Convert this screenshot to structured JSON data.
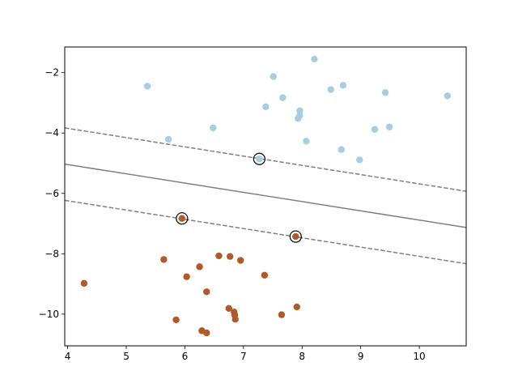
{
  "chart_data": {
    "type": "scatter",
    "title": "",
    "xlabel": "",
    "ylabel": "",
    "xlim": [
      3.95,
      10.8
    ],
    "ylim": [
      -11.05,
      -1.15
    ],
    "x_ticks": [
      4,
      5,
      6,
      7,
      8,
      9,
      10
    ],
    "y_ticks": [
      -10,
      -8,
      -6,
      -4,
      -2
    ],
    "x_tick_labels": [
      "4",
      "5",
      "6",
      "7",
      "8",
      "9",
      "10"
    ],
    "y_tick_labels": [
      "−10",
      "−8",
      "−6",
      "−4",
      "−2"
    ],
    "grid": false,
    "series": [
      {
        "color": "#a6cee3",
        "points": [
          [
            5.36,
            -2.45
          ],
          [
            5.72,
            -4.21
          ],
          [
            6.48,
            -3.83
          ],
          [
            7.27,
            -4.86
          ],
          [
            7.38,
            -3.13
          ],
          [
            7.51,
            -2.13
          ],
          [
            7.67,
            -2.83
          ],
          [
            7.93,
            -3.52
          ],
          [
            7.96,
            -3.26
          ],
          [
            7.96,
            -3.42
          ],
          [
            8.07,
            -4.27
          ],
          [
            8.21,
            -1.55
          ],
          [
            8.49,
            -2.56
          ],
          [
            8.67,
            -4.55
          ],
          [
            8.7,
            -2.42
          ],
          [
            8.98,
            -4.89
          ],
          [
            9.24,
            -3.88
          ],
          [
            9.42,
            -2.66
          ],
          [
            9.49,
            -3.8
          ],
          [
            10.48,
            -2.77
          ]
        ]
      },
      {
        "color": "#b15928",
        "points": [
          [
            4.28,
            -8.98
          ],
          [
            5.64,
            -8.19
          ],
          [
            5.85,
            -10.19
          ],
          [
            5.95,
            -6.83
          ],
          [
            6.03,
            -8.76
          ],
          [
            6.25,
            -8.43
          ],
          [
            6.29,
            -10.55
          ],
          [
            6.37,
            -10.62
          ],
          [
            6.37,
            -9.26
          ],
          [
            6.58,
            -8.07
          ],
          [
            6.75,
            -9.81
          ],
          [
            6.77,
            -8.09
          ],
          [
            6.84,
            -9.93
          ],
          [
            6.85,
            -10.03
          ],
          [
            6.86,
            -10.17
          ],
          [
            6.95,
            -8.22
          ],
          [
            7.36,
            -8.71
          ],
          [
            7.65,
            -10.02
          ],
          [
            7.89,
            -7.43
          ],
          [
            7.91,
            -9.76
          ]
        ]
      }
    ],
    "support_vectors": [
      [
        7.27,
        -4.86
      ],
      [
        5.95,
        -6.83
      ],
      [
        7.89,
        -7.43
      ]
    ],
    "decision_lines": [
      {
        "style": "solid",
        "color": "#808080",
        "points": [
          [
            3.95,
            -5.03
          ],
          [
            10.8,
            -7.13
          ]
        ]
      },
      {
        "style": "dashed",
        "color": "#808080",
        "points": [
          [
            3.95,
            -3.83
          ],
          [
            10.8,
            -5.93
          ]
        ]
      },
      {
        "style": "dashed",
        "color": "#808080",
        "points": [
          [
            3.95,
            -6.23
          ],
          [
            10.8,
            -8.33
          ]
        ]
      }
    ]
  }
}
